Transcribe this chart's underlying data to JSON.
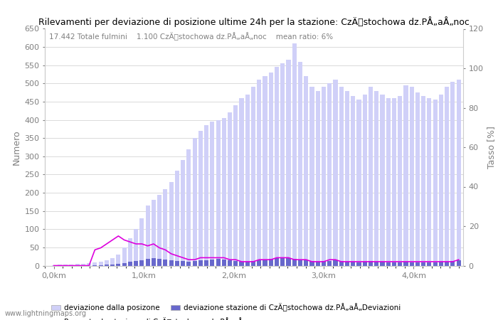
{
  "title": "Rilevamenti per deviazione di posizione ultime 24h per la stazione: CzÄstochowa dz.PÅ„aÅ„noc",
  "subtitle": "17.442 Totale fulmini    1.100 CzÄstochowa dz.PÅ„aÅ„noc    mean ratio: 6%",
  "ylabel_left": "Numero",
  "ylabel_right": "Tasso [%]",
  "ylim_left": [
    0,
    650
  ],
  "ylim_right": [
    0,
    120
  ],
  "yticks_left": [
    0,
    50,
    100,
    150,
    200,
    250,
    300,
    350,
    400,
    450,
    500,
    550,
    600,
    650
  ],
  "yticks_right": [
    0,
    20,
    40,
    60,
    80,
    100,
    120
  ],
  "xticklabels": [
    "0,0km",
    "1,0km",
    "2,0km",
    "3,0km",
    "4,0km"
  ],
  "legend1_label": "deviazione dalla posizone",
  "legend2_label": "deviazione stazione di CzÄstochowa dz.PÅ„aÅ„Deviazioni",
  "legend3_label": "Percentuale stazione di CzÄstochowa dz.PÅ„aÅ„noc",
  "bar_color_light": "#d0d0f8",
  "bar_color_dark": "#6868cc",
  "line_color": "#dd00dd",
  "watermark": "www.lightningmaps.org",
  "total_bars": [
    1,
    2,
    2,
    3,
    4,
    5,
    6,
    8,
    10,
    14,
    20,
    30,
    50,
    75,
    100,
    130,
    165,
    180,
    195,
    210,
    230,
    260,
    290,
    320,
    350,
    370,
    385,
    395,
    400,
    405,
    420,
    440,
    460,
    470,
    490,
    510,
    520,
    530,
    545,
    555,
    565,
    610,
    560,
    520,
    490,
    480,
    490,
    500,
    510,
    490,
    480,
    465,
    455,
    470,
    490,
    480,
    470,
    460,
    460,
    465,
    495,
    490,
    475,
    465,
    460,
    455,
    470,
    490,
    505,
    510
  ],
  "station_bars": [
    0,
    0,
    0,
    0,
    0,
    0,
    0,
    1,
    1,
    2,
    3,
    5,
    7,
    10,
    12,
    15,
    18,
    20,
    18,
    16,
    14,
    13,
    12,
    11,
    12,
    14,
    15,
    17,
    18,
    16,
    14,
    12,
    11,
    10,
    12,
    14,
    16,
    18,
    20,
    22,
    20,
    18,
    16,
    14,
    12,
    11,
    12,
    13,
    14,
    12,
    11,
    10,
    9,
    10,
    12,
    11,
    10,
    9,
    8,
    9,
    10,
    9,
    8,
    8,
    9,
    9,
    10,
    11,
    12,
    14
  ],
  "percentage_line": [
    0,
    0,
    0,
    0,
    0,
    0,
    0,
    8,
    9,
    11,
    13,
    15,
    13,
    12,
    11,
    11,
    10,
    11,
    9,
    8,
    6,
    5,
    4,
    3,
    3,
    4,
    4,
    4,
    4,
    4,
    3,
    3,
    2,
    2,
    2,
    3,
    3,
    3,
    4,
    4,
    4,
    3,
    3,
    3,
    2,
    2,
    2,
    3,
    3,
    2,
    2,
    2,
    2,
    2,
    2,
    2,
    2,
    2,
    2,
    2,
    2,
    2,
    2,
    2,
    2,
    2,
    2,
    2,
    2,
    3
  ],
  "n_bars": 70,
  "x_max_km": 4.5,
  "bar_width": 0.4
}
